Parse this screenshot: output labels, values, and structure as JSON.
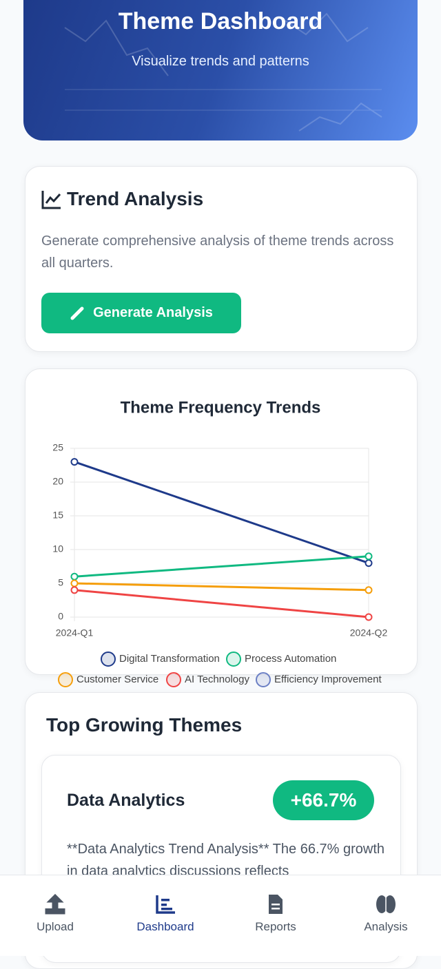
{
  "header": {
    "title": "Theme Dashboard",
    "subtitle": "Visualize trends and patterns"
  },
  "trend_card": {
    "title": "Trend Analysis",
    "description": "Generate comprehensive analysis of theme trends across all quarters.",
    "button": "Generate Analysis"
  },
  "chart_data": {
    "type": "line",
    "title": "Theme Frequency Trends",
    "categories": [
      "2024-Q1",
      "2024-Q2"
    ],
    "series": [
      {
        "name": "Digital Transformation",
        "color": "#1e3a8a",
        "values": [
          23,
          8
        ]
      },
      {
        "name": "Process Automation",
        "color": "#10b981",
        "values": [
          6,
          9
        ]
      },
      {
        "name": "Customer Service",
        "color": "#f59e0b",
        "values": [
          5,
          4
        ]
      },
      {
        "name": "AI Technology",
        "color": "#ef4444",
        "values": [
          4,
          0
        ]
      },
      {
        "name": "Efficiency Improvement",
        "color": "#6b7fc4",
        "values": [
          null,
          null
        ]
      }
    ],
    "ylim": [
      0,
      25
    ],
    "yticks": [
      0,
      5,
      10,
      15,
      20,
      25
    ],
    "grid": true
  },
  "growing": {
    "title": "Top Growing Themes",
    "items": [
      {
        "name": "Data Analytics",
        "badge": "+66.7%",
        "text": "**Data Analytics Trend Analysis** The 66.7% growth in data analytics discussions reflects"
      }
    ]
  },
  "nav": [
    "Upload",
    "Dashboard",
    "Reports",
    "Analysis"
  ]
}
